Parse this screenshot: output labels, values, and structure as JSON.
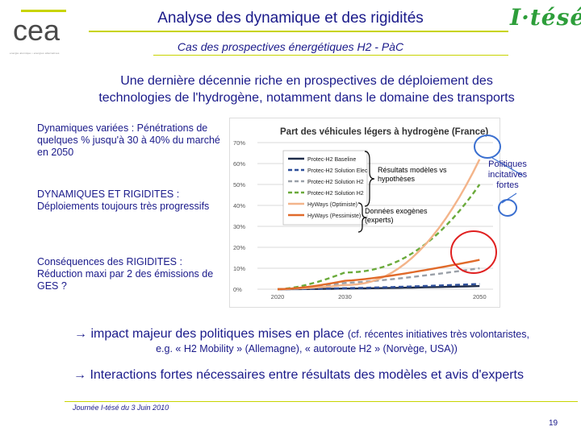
{
  "logo_left": {
    "text": "cea",
    "tagline": "energie atomique • energies alternatives"
  },
  "logo_right": "I·tésé",
  "title": "Analyse des dynamique et des rigidités",
  "subtitle": "Cas des prospectives énergétiques H2 - PàC",
  "headline": [
    "Une dernière décennie riche en prospectives de déploiement des",
    "technologies de l'hydrogène, notamment dans le domaine des transports"
  ],
  "side_texts": [
    "Dynamiques variées : Pénétrations de quelques % jusqu'à 30 à 40% du marché en 2050",
    "DYNAMIQUES ET RIGIDITES : Déploiements toujours très progressifs",
    "Conséquences des RIGIDITES : Réduction maxi par 2 des émissions de GES ?"
  ],
  "annotations": {
    "models": "Résultats modèles vs hypothèses",
    "exogenous": "Données exogènes (experts)",
    "policies": "Politiques incitatives fortes"
  },
  "colors": {
    "title": "#1a1a8a",
    "accent_rule": "#c8d400",
    "logo_green": "#2d9e3a",
    "circle_red": "#e02020",
    "circle_blue": "#3a6fd0"
  },
  "impact": {
    "main": "→ impact majeur des politiques mises en place",
    "detail": "(cf. récentes initiatives très volontaristes,",
    "detail2": "e.g. « H2 Mobility » (Allemagne), « autoroute H2 » (Norvège, USA))"
  },
  "interactions": "→ Interactions fortes nécessaires entre résultats des modèles et avis d'experts",
  "footer": "Journée I-tésé du 3 Juin 2010",
  "page_number": "19",
  "chart_data": {
    "type": "line",
    "title": "Part des véhicules légers à hydrogène (France)",
    "x": [
      2020,
      2030,
      2050
    ],
    "x_ticks": [
      "2020",
      "2030",
      "2050"
    ],
    "y_ticks": [
      "0%",
      "10%",
      "20%",
      "30%",
      "40%",
      "50%",
      "60%",
      "70%"
    ],
    "ylim": [
      0,
      70
    ],
    "xlim": [
      2017,
      2052
    ],
    "series": [
      {
        "name": "Protec-H2 Baseline",
        "color": "#1f2d4a",
        "dash": "solid",
        "values": [
          0,
          0.3,
          1.5
        ]
      },
      {
        "name": "Protec-H2 Solution Elec",
        "color": "#2e4f9a",
        "dash": "dash",
        "values": [
          0,
          0.5,
          2.5
        ]
      },
      {
        "name": "Protec-H2 Solution H2",
        "color": "#9aa0a8",
        "dash": "dash",
        "values": [
          0,
          3,
          10
        ]
      },
      {
        "name": "Protec-H2 Solution H2",
        "color": "#6aaa3a",
        "dash": "dash",
        "values": [
          0,
          8,
          50
        ]
      },
      {
        "name": "HyWays (Optimiste)",
        "color": "#f3b48a",
        "dash": "solid",
        "values": [
          0,
          2,
          62
        ]
      },
      {
        "name": "HyWays (Pessimiste)",
        "color": "#e06a2a",
        "dash": "solid",
        "values": [
          0,
          4,
          14
        ]
      }
    ],
    "grid": true,
    "legend": "top-left"
  }
}
